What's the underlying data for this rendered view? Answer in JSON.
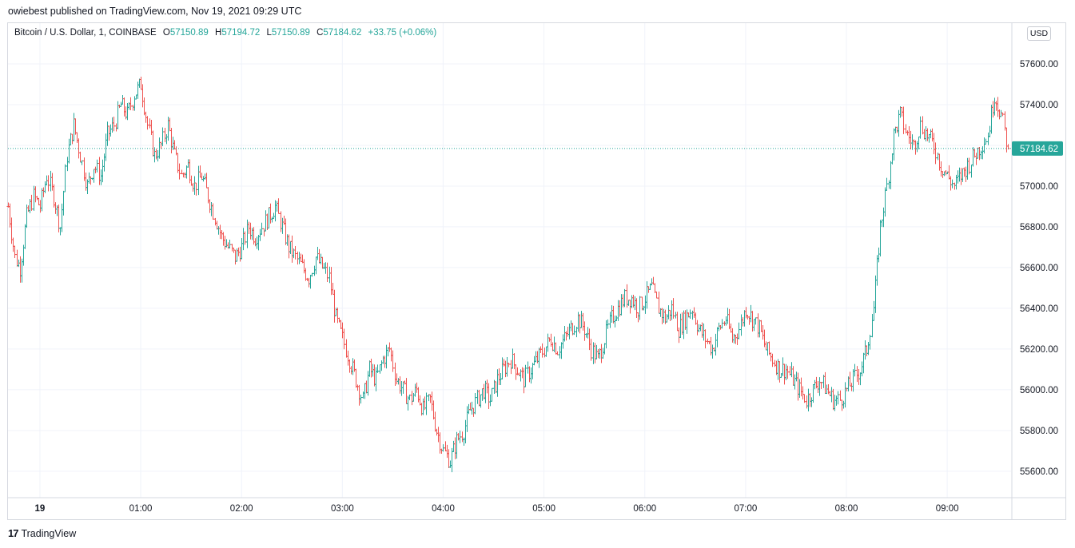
{
  "header": {
    "published": "owiebest published on TradingView.com, Nov 19, 2021 09:29 UTC"
  },
  "legend": {
    "symbol": "Bitcoin / U.S. Dollar, 1, COINBASE",
    "o_label": "O",
    "o_value": "57150.89",
    "h_label": "H",
    "h_value": "57194.72",
    "l_label": "L",
    "l_value": "57150.89",
    "c_label": "C",
    "c_value": "57184.62",
    "change": "+33.75 (+0.06%)"
  },
  "currency_button": "USD",
  "brand": {
    "logo": "17",
    "name": "TradingView"
  },
  "colors": {
    "up": "#26a69a",
    "down": "#ef5350",
    "grid": "#f0f3fa",
    "last_price": "#26a69a"
  },
  "chart_data": {
    "type": "ohlc",
    "symbol": "Bitcoin / U.S. Dollar",
    "interval": "1",
    "exchange": "COINBASE",
    "y_ticks": [
      "57600.00",
      "57400.00",
      "57200.00",
      "57000.00",
      "56800.00",
      "56600.00",
      "56400.00",
      "56200.00",
      "56000.00",
      "55800.00",
      "55600.00"
    ],
    "y_tick_values": [
      57600,
      57400,
      57200,
      57000,
      56800,
      56600,
      56400,
      56200,
      56000,
      55800,
      55600
    ],
    "x_ticks": [
      "19",
      "01:00",
      "02:00",
      "03:00",
      "04:00",
      "05:00",
      "06:00",
      "07:00",
      "08:00",
      "09:00"
    ],
    "x_tick_minutes": [
      0,
      60,
      120,
      180,
      240,
      300,
      360,
      420,
      480,
      540
    ],
    "ylim": [
      55470,
      57800
    ],
    "xlim_minutes": [
      -19,
      578
    ],
    "last_price": "57184.62",
    "last_price_value": 57184.62,
    "grid": true,
    "series_close": [
      [
        -19,
        56900
      ],
      [
        -15,
        56650
      ],
      [
        -12,
        56600
      ],
      [
        -8,
        56850
      ],
      [
        -4,
        56950
      ],
      [
        0,
        56900
      ],
      [
        4,
        57050
      ],
      [
        8,
        56950
      ],
      [
        12,
        56800
      ],
      [
        16,
        57150
      ],
      [
        20,
        57300
      ],
      [
        24,
        57150
      ],
      [
        28,
        57000
      ],
      [
        32,
        57100
      ],
      [
        36,
        57050
      ],
      [
        40,
        57250
      ],
      [
        44,
        57300
      ],
      [
        48,
        57400
      ],
      [
        52,
        57350
      ],
      [
        56,
        57450
      ],
      [
        60,
        57500
      ],
      [
        64,
        57300
      ],
      [
        68,
        57150
      ],
      [
        72,
        57200
      ],
      [
        76,
        57300
      ],
      [
        80,
        57150
      ],
      [
        84,
        57050
      ],
      [
        88,
        57100
      ],
      [
        92,
        57000
      ],
      [
        96,
        57050
      ],
      [
        100,
        56950
      ],
      [
        104,
        56850
      ],
      [
        108,
        56750
      ],
      [
        112,
        56700
      ],
      [
        116,
        56650
      ],
      [
        120,
        56700
      ],
      [
        124,
        56800
      ],
      [
        128,
        56750
      ],
      [
        132,
        56800
      ],
      [
        136,
        56850
      ],
      [
        140,
        56900
      ],
      [
        144,
        56800
      ],
      [
        148,
        56700
      ],
      [
        152,
        56650
      ],
      [
        156,
        56600
      ],
      [
        160,
        56550
      ],
      [
        164,
        56650
      ],
      [
        168,
        56600
      ],
      [
        172,
        56550
      ],
      [
        176,
        56350
      ],
      [
        180,
        56250
      ],
      [
        184,
        56150
      ],
      [
        188,
        56050
      ],
      [
        192,
        55950
      ],
      [
        196,
        56100
      ],
      [
        200,
        56050
      ],
      [
        204,
        56150
      ],
      [
        208,
        56200
      ],
      [
        212,
        56050
      ],
      [
        216,
        56000
      ],
      [
        220,
        55950
      ],
      [
        224,
        56000
      ],
      [
        228,
        55900
      ],
      [
        232,
        55950
      ],
      [
        236,
        55800
      ],
      [
        240,
        55700
      ],
      [
        244,
        55650
      ],
      [
        248,
        55750
      ],
      [
        252,
        55800
      ],
      [
        256,
        55900
      ],
      [
        260,
        55950
      ],
      [
        264,
        56000
      ],
      [
        268,
        55950
      ],
      [
        272,
        56050
      ],
      [
        276,
        56100
      ],
      [
        280,
        56150
      ],
      [
        284,
        56100
      ],
      [
        288,
        56050
      ],
      [
        292,
        56100
      ],
      [
        296,
        56150
      ],
      [
        300,
        56200
      ],
      [
        304,
        56250
      ],
      [
        308,
        56200
      ],
      [
        312,
        56250
      ],
      [
        316,
        56300
      ],
      [
        320,
        56350
      ],
      [
        324,
        56300
      ],
      [
        328,
        56200
      ],
      [
        332,
        56150
      ],
      [
        336,
        56250
      ],
      [
        340,
        56350
      ],
      [
        344,
        56400
      ],
      [
        348,
        56450
      ],
      [
        352,
        56450
      ],
      [
        356,
        56400
      ],
      [
        360,
        56450
      ],
      [
        364,
        56500
      ],
      [
        368,
        56400
      ],
      [
        372,
        56350
      ],
      [
        376,
        56400
      ],
      [
        380,
        56300
      ],
      [
        384,
        56350
      ],
      [
        388,
        56400
      ],
      [
        392,
        56300
      ],
      [
        396,
        56250
      ],
      [
        400,
        56200
      ],
      [
        404,
        56300
      ],
      [
        408,
        56350
      ],
      [
        412,
        56250
      ],
      [
        416,
        56300
      ],
      [
        420,
        56400
      ],
      [
        424,
        56350
      ],
      [
        428,
        56300
      ],
      [
        432,
        56200
      ],
      [
        436,
        56150
      ],
      [
        440,
        56100
      ],
      [
        444,
        56100
      ],
      [
        448,
        56050
      ],
      [
        452,
        56000
      ],
      [
        456,
        55950
      ],
      [
        460,
        56000
      ],
      [
        464,
        56050
      ],
      [
        468,
        56000
      ],
      [
        472,
        55950
      ],
      [
        476,
        55950
      ],
      [
        480,
        56000
      ],
      [
        484,
        56050
      ],
      [
        488,
        56100
      ],
      [
        492,
        56200
      ],
      [
        496,
        56400
      ],
      [
        500,
        56800
      ],
      [
        504,
        57000
      ],
      [
        508,
        57250
      ],
      [
        512,
        57350
      ],
      [
        516,
        57250
      ],
      [
        520,
        57200
      ],
      [
        524,
        57300
      ],
      [
        528,
        57250
      ],
      [
        532,
        57200
      ],
      [
        536,
        57100
      ],
      [
        540,
        57050
      ],
      [
        544,
        57000
      ],
      [
        548,
        57050
      ],
      [
        552,
        57100
      ],
      [
        556,
        57150
      ],
      [
        560,
        57200
      ],
      [
        564,
        57250
      ],
      [
        568,
        57450
      ],
      [
        572,
        57350
      ],
      [
        576,
        57184.62
      ]
    ]
  }
}
